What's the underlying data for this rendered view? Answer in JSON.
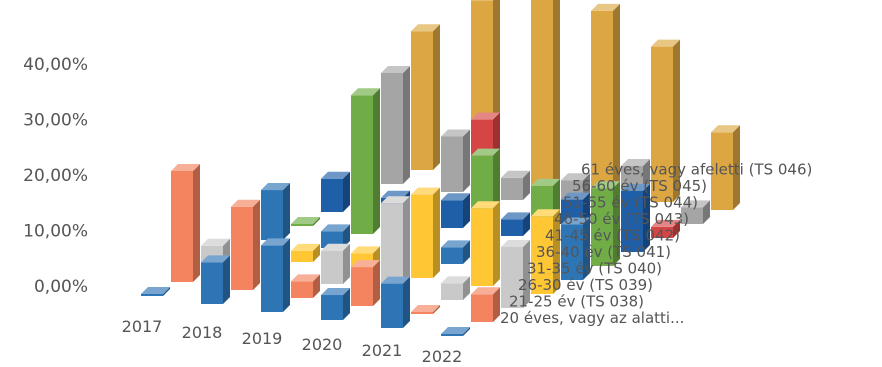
{
  "chart_data": {
    "type": "bar",
    "subtype": "3d-column",
    "title": "",
    "xlabel": "",
    "ylabel": "",
    "ylim": [
      0,
      45
    ],
    "yticks": [
      "0,00%",
      "10,00%",
      "20,00%",
      "30,00%",
      "40,00%"
    ],
    "grid": false,
    "legend": "none",
    "categories": [
      "2017",
      "2018",
      "2019",
      "2020",
      "2021",
      "2022"
    ],
    "series": [
      {
        "name": "20 éves, vagy az alatti...",
        "color": "#2e75b6",
        "values": [
          0.2,
          7.5,
          12,
          4.5,
          8,
          0.3
        ]
      },
      {
        "name": "21-25 év (TS 038)",
        "color": "#f4845f",
        "values": [
          20,
          15,
          3,
          7,
          0.3,
          5
        ]
      },
      {
        "name": "26-30 év (TS 039)",
        "color": "#c9c9c9",
        "values": [
          4,
          3,
          6,
          16,
          3,
          11
        ]
      },
      {
        "name": "31-35 év (TS 040)",
        "color": "#ffc733",
        "values": [
          3,
          2,
          3,
          15,
          14,
          14
        ]
      },
      {
        "name": "36-40 év (TS 041)",
        "color": "#2e75b6",
        "values": [
          9,
          3,
          2,
          3,
          0.3,
          10
        ]
      },
      {
        "name": "41-45 év (TS 042)",
        "color": "#70ad47",
        "values": [
          0.3,
          25,
          1,
          17,
          13,
          14
        ]
      },
      {
        "name": "46-50 év (TS 043)",
        "color": "#1f5fa8",
        "values": [
          6,
          4,
          5,
          3,
          8,
          11
        ]
      },
      {
        "name": "51-55 év (TS 044)",
        "color": "#d64545",
        "values": [
          16,
          2,
          17,
          2,
          3,
          2
        ]
      },
      {
        "name": "56-60 év (TS 045)",
        "color": "#a5a5a5",
        "values": [
          20,
          10,
          4,
          5,
          9,
          3
        ]
      },
      {
        "name": "61 éves, vagy afeletti (TS 046)",
        "color": "#dca742",
        "values": [
          25,
          32,
          37,
          33,
          28,
          14
        ]
      }
    ]
  }
}
